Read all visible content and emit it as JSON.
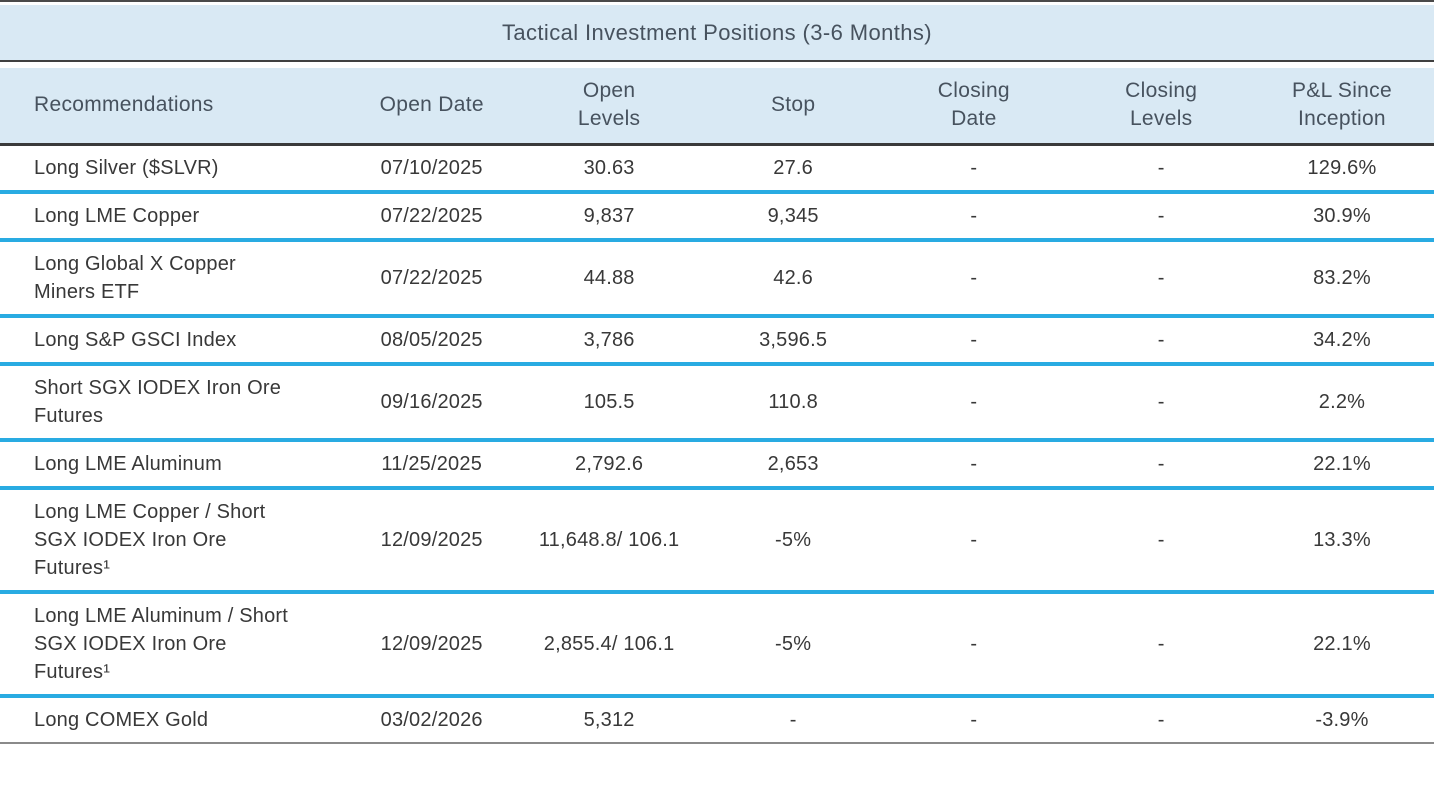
{
  "title": "Tactical Investment Positions (3-6 Months)",
  "table": {
    "column_keys": [
      "recommendation",
      "open_date",
      "open_levels",
      "stop",
      "closing_date",
      "closing_levels",
      "pnl_since_inception"
    ],
    "columns": [
      {
        "label": "Recommendations"
      },
      {
        "label": "Open Date"
      },
      {
        "label": "Open\nLevels"
      },
      {
        "label": "Stop"
      },
      {
        "label": "Closing\nDate"
      },
      {
        "label": "Closing\nLevels"
      },
      {
        "label": "P&L Since\nInception"
      }
    ],
    "rows": [
      [
        "Long Silver ($SLVR)",
        "07/10/2025",
        "30.63",
        "27.6",
        "-",
        "-",
        "129.6%"
      ],
      [
        "Long LME Copper",
        "07/22/2025",
        "9,837",
        "9,345",
        "-",
        "-",
        "30.9%"
      ],
      [
        "Long Global X Copper Miners ETF",
        "07/22/2025",
        "44.88",
        "42.6",
        "-",
        "-",
        "83.2%"
      ],
      [
        "Long S&P GSCI Index",
        "08/05/2025",
        "3,786",
        "3,596.5",
        "-",
        "-",
        "34.2%"
      ],
      [
        "Short SGX IODEX Iron Ore Futures",
        "09/16/2025",
        "105.5",
        "110.8",
        "-",
        "-",
        "2.2%"
      ],
      [
        "Long LME Aluminum",
        "11/25/2025",
        "2,792.6",
        "2,653",
        "-",
        "-",
        "22.1%"
      ],
      [
        "Long LME Copper / Short SGX IODEX Iron Ore Futures¹",
        "12/09/2025",
        "11,648.8/ 106.1",
        "-5%",
        "-",
        "-",
        "13.3%"
      ],
      [
        "Long LME Aluminum / Short SGX IODEX Iron Ore Futures¹",
        "12/09/2025",
        "2,855.4/ 106.1",
        "-5%",
        "-",
        "-",
        "22.1%"
      ],
      [
        "Long COMEX Gold",
        "03/02/2026",
        "5,312",
        "-",
        "-",
        "-",
        "-3.9%"
      ]
    ]
  },
  "colors": {
    "header_bg": "#d9e9f4",
    "row_divider": "#29abe2",
    "dark_rule": "#404040",
    "bottom_rule": "#8a8a8a",
    "header_text": "#47525e",
    "body_text": "#383838"
  }
}
